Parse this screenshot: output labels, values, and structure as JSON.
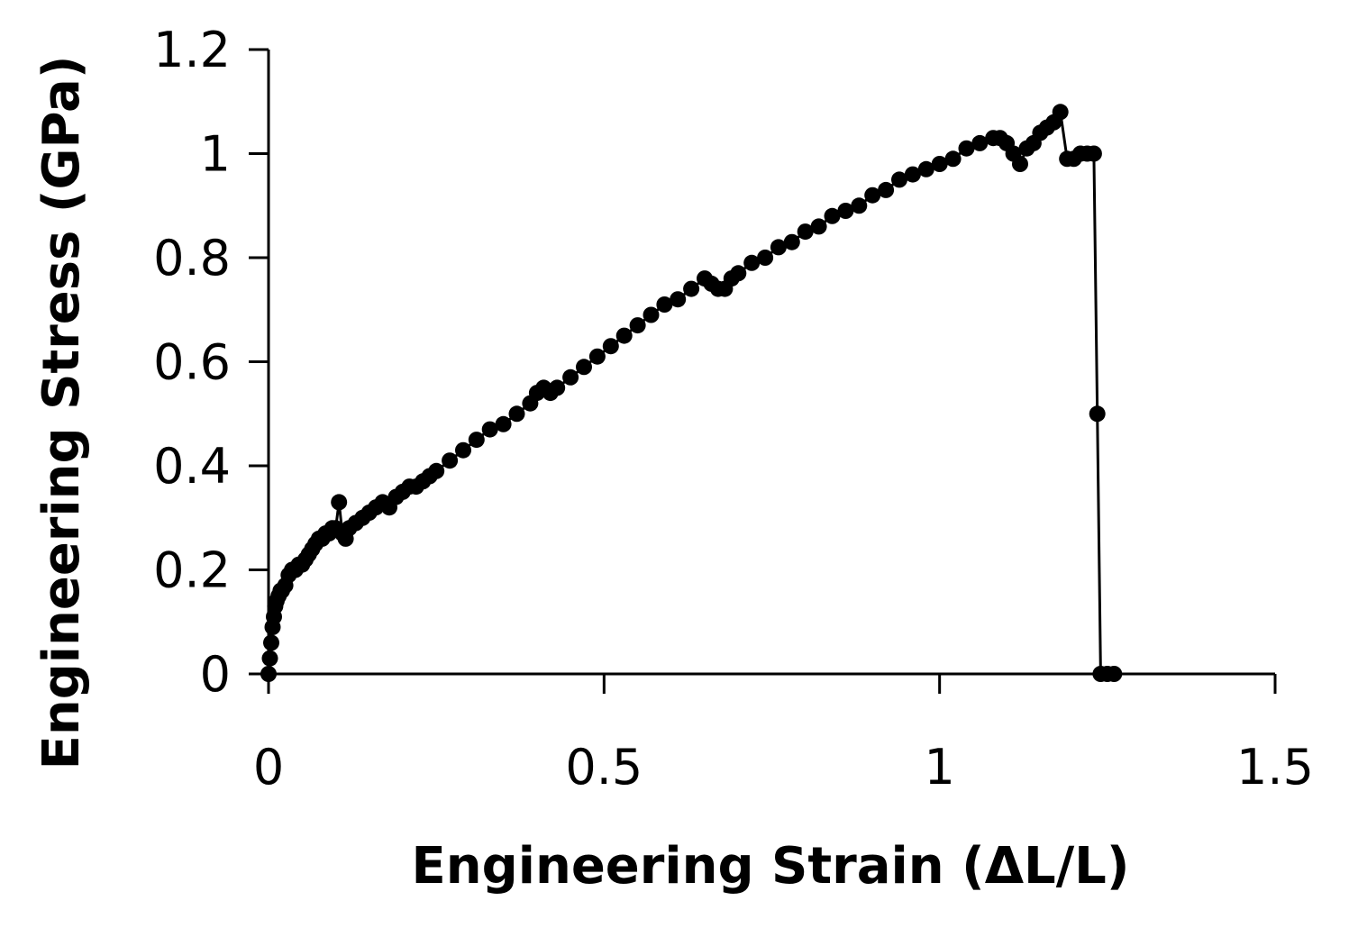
{
  "chart_data": {
    "type": "scatter",
    "title": "",
    "xlabel": "Engineering Strain (ΔL/L)",
    "ylabel": "Engineering Stress (GPa)",
    "xlim": [
      0,
      1.5
    ],
    "ylim": [
      0,
      1.2
    ],
    "x_ticks": [
      "0",
      "0.5",
      "1",
      "1.5"
    ],
    "y_ticks": [
      "0",
      "0.2",
      "0.4",
      "0.6",
      "0.8",
      "1",
      "1.2"
    ],
    "grid": false,
    "legend": "none",
    "marker": "filled-circle",
    "line_connected": true,
    "color": "#000000",
    "series": [
      {
        "x": [
          0,
          0.002,
          0.004,
          0.006,
          0.008,
          0.01,
          0.012,
          0.015,
          0.018,
          0.02,
          0.025,
          0.03,
          0.035,
          0.04,
          0.045,
          0.05,
          0.055,
          0.06,
          0.065,
          0.07,
          0.075,
          0.08,
          0.085,
          0.09,
          0.095,
          0.1,
          0.105,
          0.11,
          0.115,
          0.12,
          0.13,
          0.14,
          0.15,
          0.16,
          0.17,
          0.18,
          0.19,
          0.2,
          0.21,
          0.22,
          0.23,
          0.24,
          0.25,
          0.27,
          0.29,
          0.31,
          0.33,
          0.35,
          0.37,
          0.39,
          0.4,
          0.41,
          0.42,
          0.43,
          0.45,
          0.47,
          0.49,
          0.51,
          0.53,
          0.55,
          0.57,
          0.59,
          0.61,
          0.63,
          0.65,
          0.66,
          0.67,
          0.68,
          0.69,
          0.7,
          0.72,
          0.74,
          0.76,
          0.78,
          0.8,
          0.82,
          0.84,
          0.86,
          0.88,
          0.9,
          0.92,
          0.94,
          0.96,
          0.98,
          1.0,
          1.02,
          1.04,
          1.06,
          1.08,
          1.09,
          1.1,
          1.11,
          1.12,
          1.13,
          1.14,
          1.15,
          1.16,
          1.17,
          1.18,
          1.19,
          1.2,
          1.21,
          1.22,
          1.23,
          1.235,
          1.24,
          1.25,
          1.26
        ],
        "y": [
          0,
          0.03,
          0.06,
          0.09,
          0.11,
          0.13,
          0.14,
          0.15,
          0.16,
          0.16,
          0.17,
          0.19,
          0.2,
          0.2,
          0.21,
          0.21,
          0.22,
          0.23,
          0.24,
          0.25,
          0.26,
          0.26,
          0.27,
          0.27,
          0.28,
          0.28,
          0.33,
          0.27,
          0.26,
          0.28,
          0.29,
          0.3,
          0.31,
          0.32,
          0.33,
          0.32,
          0.34,
          0.35,
          0.36,
          0.36,
          0.37,
          0.38,
          0.39,
          0.41,
          0.43,
          0.45,
          0.47,
          0.48,
          0.5,
          0.52,
          0.54,
          0.55,
          0.54,
          0.55,
          0.57,
          0.59,
          0.61,
          0.63,
          0.65,
          0.67,
          0.69,
          0.71,
          0.72,
          0.74,
          0.76,
          0.75,
          0.74,
          0.74,
          0.76,
          0.77,
          0.79,
          0.8,
          0.82,
          0.83,
          0.85,
          0.86,
          0.88,
          0.89,
          0.9,
          0.92,
          0.93,
          0.95,
          0.96,
          0.97,
          0.98,
          0.99,
          1.01,
          1.02,
          1.03,
          1.03,
          1.02,
          1.0,
          0.98,
          1.01,
          1.02,
          1.04,
          1.05,
          1.06,
          1.08,
          0.99,
          0.99,
          1.0,
          1.0,
          1.0,
          0.5,
          0.0,
          0.0,
          0.0
        ]
      }
    ]
  }
}
